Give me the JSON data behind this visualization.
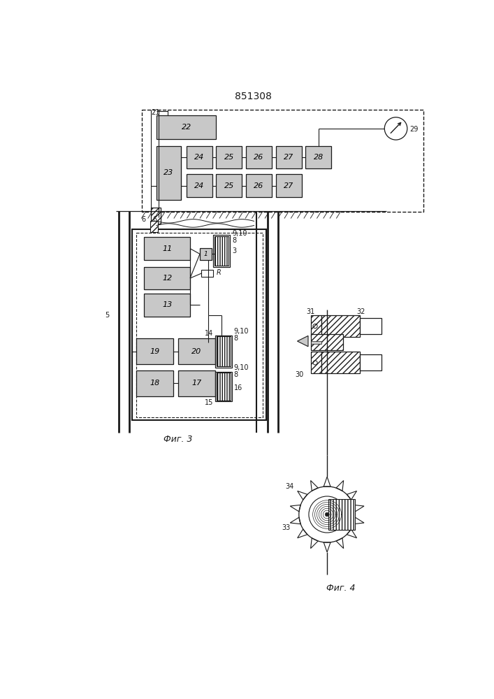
{
  "title": "851308",
  "fig3_caption": "Фиг. 3",
  "fig4_caption": "Фиг. 4",
  "bg": "#ffffff",
  "lc": "#1a1a1a",
  "gray": "#c8c8c8",
  "fs_title": 10,
  "fs_lbl": 7,
  "fs_blk": 8
}
